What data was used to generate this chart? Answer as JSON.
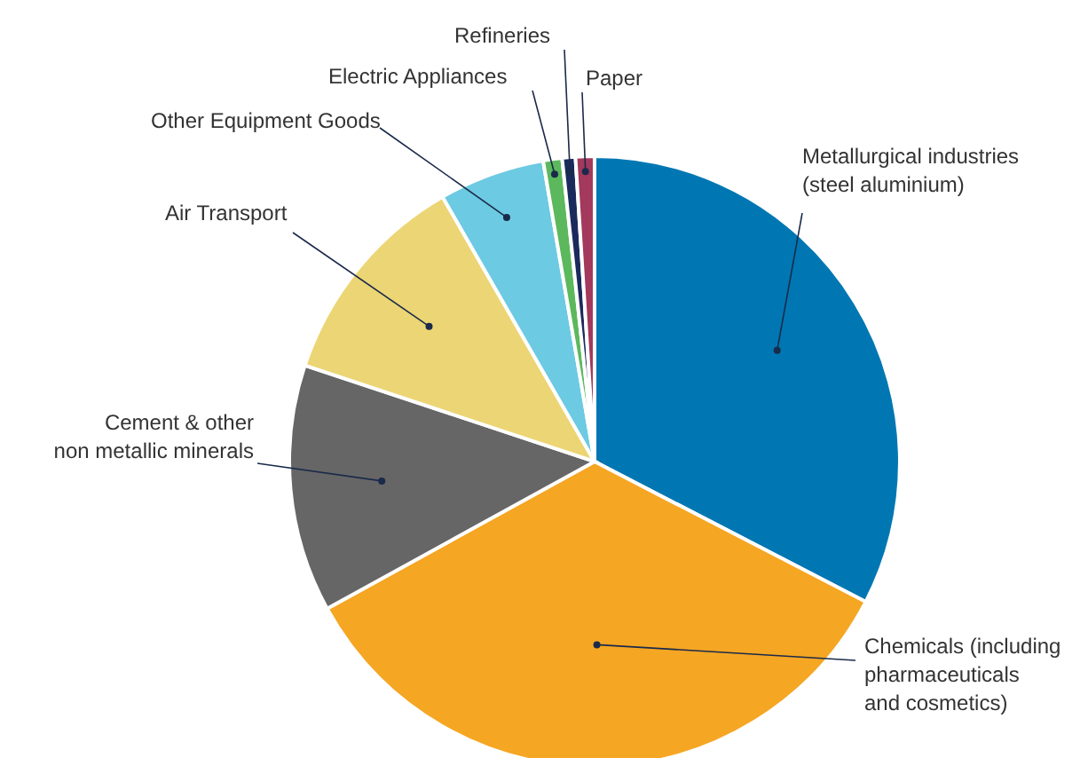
{
  "chart_data": {
    "type": "pie",
    "categories": [
      "Metallurgical industries (steel aluminium)",
      "Chemicals (including pharmaceuticals and cosmetics)",
      "Cement & other non metallic minerals",
      "Air Transport",
      "Other Equipment Goods",
      "Electric Appliances",
      "Refineries",
      "Paper"
    ],
    "values": [
      32.6,
      34.4,
      13.1,
      11.6,
      5.6,
      1.0,
      0.7,
      1.0
    ],
    "colors": [
      "#0077b3",
      "#f5a623",
      "#666666",
      "#ecd574",
      "#6ccae2",
      "#5cb85c",
      "#1b2a5c",
      "#a3395c"
    ],
    "legend": false
  }
}
